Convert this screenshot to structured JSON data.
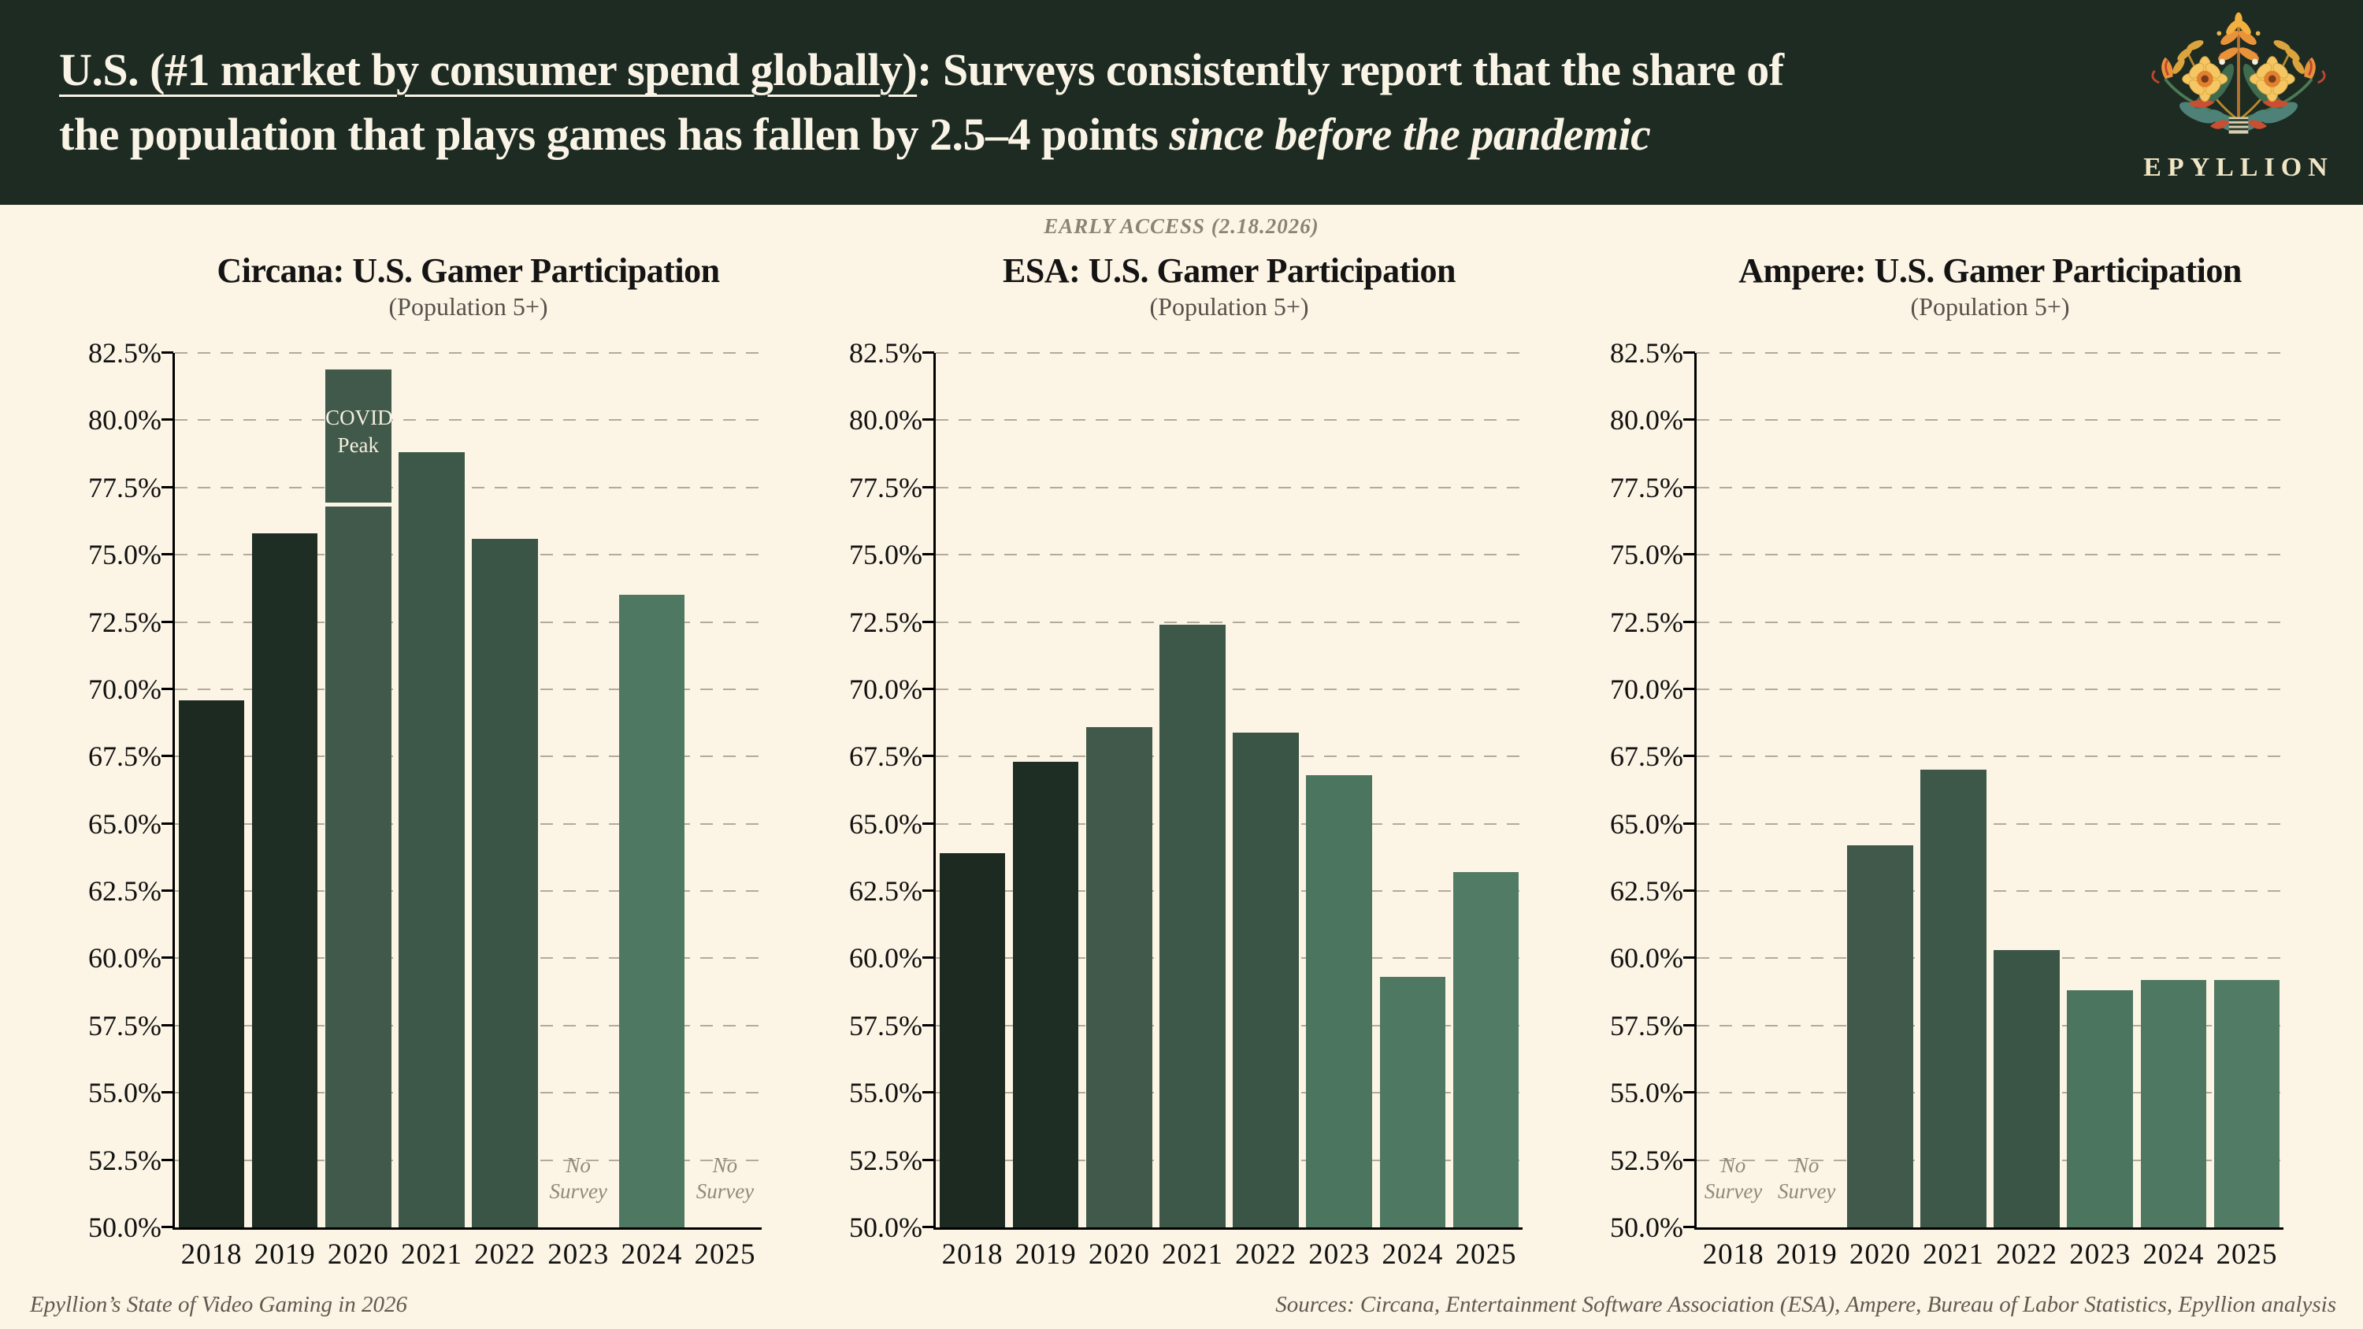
{
  "header": {
    "title_underlined": "U.S. (#1 market by consumer spend globally)",
    "title_line1_rest": ": Surveys consistently report that the share of",
    "title_line2": "the population that plays games has fallen by 2.5–4 points ",
    "title_line2_italic": "since before the pandemic",
    "logo_text": "EPYLLION"
  },
  "early_access": "EARLY ACCESS (2.18.2026)",
  "footer": {
    "left": "Epyllion’s State of Video Gaming in 2026",
    "right": "Sources: Circana, Entertainment Software Association (ESA), Ampere, Bureau of Labor Statistics, Epyllion analysis"
  },
  "colors": {
    "page_bg": "#fcf4e4",
    "header_bg": "#1d2b23",
    "header_fg": "#faf4e6",
    "logo_fg": "#f0e5c4",
    "gridline": "#b2ab9b",
    "bar_colors_by_year": [
      "#1c2a21",
      "#1f2e25",
      "#40594a",
      "#3d5749",
      "#3a5446",
      "#4c7560",
      "#4f7862",
      "#527b65"
    ]
  },
  "chart_data": [
    {
      "type": "bar",
      "title": "Circana: U.S. Gamer Participation",
      "subtitle": "(Population 5+)",
      "categories": [
        "2018",
        "2019",
        "2020",
        "2021",
        "2022",
        "2023",
        "2024",
        "2025"
      ],
      "values": [
        69.6,
        75.8,
        81.9,
        78.8,
        75.6,
        null,
        73.5,
        null
      ],
      "no_survey_label": "No Survey",
      "annotation": {
        "year": "2020",
        "label": "COVID Peak",
        "line_value": 76.8
      },
      "ylabel_format": "percent",
      "ylim": [
        50,
        82.5
      ],
      "ytick_step": 2.5,
      "grid": "dashed-horizontal"
    },
    {
      "type": "bar",
      "title": "ESA: U.S. Gamer Participation",
      "subtitle": "(Population 5+)",
      "categories": [
        "2018",
        "2019",
        "2020",
        "2021",
        "2022",
        "2023",
        "2024",
        "2025"
      ],
      "values": [
        63.9,
        67.3,
        68.6,
        72.4,
        68.4,
        66.8,
        59.3,
        63.2
      ],
      "no_survey_label": "No Survey",
      "ylabel_format": "percent",
      "ylim": [
        50,
        82.5
      ],
      "ytick_step": 2.5,
      "grid": "dashed-horizontal"
    },
    {
      "type": "bar",
      "title": "Ampere: U.S. Gamer Participation",
      "subtitle": "(Population 5+)",
      "categories": [
        "2018",
        "2019",
        "2020",
        "2021",
        "2022",
        "2023",
        "2024",
        "2025"
      ],
      "values": [
        null,
        null,
        64.2,
        67.0,
        60.3,
        58.8,
        59.2,
        59.2
      ],
      "no_survey_label": "No Survey",
      "ylabel_format": "percent",
      "ylim": [
        50,
        82.5
      ],
      "ytick_step": 2.5,
      "grid": "dashed-horizontal"
    }
  ]
}
